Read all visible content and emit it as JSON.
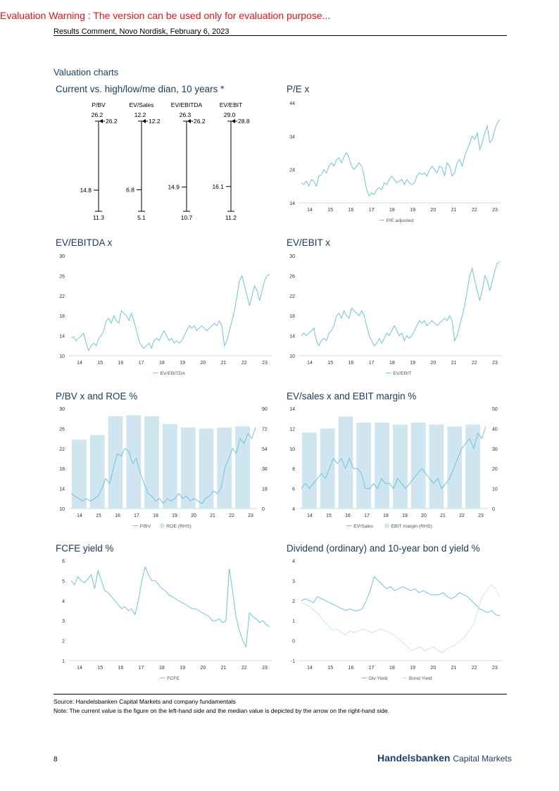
{
  "warning": "Evaluation Warning : The version can be used only for evaluation purpose...",
  "header": "Results Comment, Novo Nordisk, February 6, 2023",
  "section_title": "Valuation charts",
  "footer": {
    "source": "Source: Handelsbanken Capital Markets and company fundamentals",
    "note": "Note: The current value is the figure on the left-hand side and the median value is depicted by the arrow on the right-hand side.",
    "page": "8",
    "brand_bold": "Handelsbanken",
    "brand_rest": "Capital Markets"
  },
  "colors": {
    "line": "#6ec3e0",
    "bar": "#cfe6f0",
    "dark": "#0a1a33",
    "title": "#1a3a5c"
  },
  "chart_data": [
    {
      "type": "range",
      "title": "Current vs. high/low/me dian, 10 years *",
      "items": [
        {
          "name": "P/BV",
          "current_label": "26.2",
          "high": 26.2,
          "median": 14.8,
          "low": 11.3,
          "median_label": "14.8",
          "low_label": "11.3",
          "arrow_label": "26.2"
        },
        {
          "name": "EV/Sales",
          "current_label": "12.2",
          "high": 12.2,
          "median": 6.8,
          "low": 5.1,
          "median_label": "6.8",
          "low_label": "5.1",
          "arrow_label": "12.2"
        },
        {
          "name": "EV/EBITDA",
          "current_label": "26.3",
          "high": 26.3,
          "median": 14.9,
          "low": 10.7,
          "median_label": "14.9",
          "low_label": "10.7",
          "arrow_label": "26.2"
        },
        {
          "name": "EV/EBIT",
          "current_label": "29.0",
          "high": 29.0,
          "median": 16.1,
          "low": 11.2,
          "median_label": "16.1",
          "low_label": "11.2",
          "arrow_label": "28.8"
        }
      ]
    },
    {
      "type": "line",
      "title": "P/E x",
      "x_ticks": [
        "14",
        "15",
        "16",
        "17",
        "18",
        "19",
        "20",
        "21",
        "22",
        "23"
      ],
      "ylim": [
        14,
        44
      ],
      "yticks": [
        14,
        24,
        34,
        44
      ],
      "series": [
        {
          "name": "P/E adjusted",
          "values": [
            20,
            19.5,
            20.5,
            19,
            21,
            20.5,
            19,
            22,
            22.5,
            24,
            23,
            25,
            26,
            25,
            27,
            27.5,
            26,
            28,
            29,
            27.5,
            25,
            24,
            25,
            26,
            25,
            22,
            18,
            16,
            17,
            16.5,
            18,
            18.5,
            18,
            20,
            19.5,
            21,
            22,
            21,
            20,
            20.5,
            21,
            19.5,
            21,
            20,
            19.5,
            20,
            22,
            23,
            22.5,
            23,
            22,
            24,
            25,
            24,
            23,
            25,
            24.5,
            22,
            26,
            25,
            22,
            23,
            26,
            27,
            25,
            28,
            30,
            32,
            34,
            33,
            35,
            30,
            32,
            35,
            37,
            32,
            33,
            36,
            38,
            39
          ]
        }
      ]
    },
    {
      "type": "line",
      "title": "EV/EBITDA x",
      "x_ticks": [
        "14",
        "15",
        "16",
        "17",
        "18",
        "19",
        "20",
        "21",
        "22",
        "23"
      ],
      "ylim": [
        10,
        30
      ],
      "yticks": [
        10,
        14,
        18,
        22,
        26,
        30
      ],
      "series": [
        {
          "name": "EV/EBITDA",
          "values": [
            13.5,
            13.8,
            13,
            13.5,
            14,
            14.5,
            12.5,
            11,
            12,
            12.5,
            12,
            13.5,
            14,
            15,
            17,
            17.5,
            16.5,
            18,
            17,
            16.5,
            19,
            18.5,
            18,
            17,
            18.5,
            17,
            15,
            13,
            12,
            11.5,
            12,
            12.5,
            11.5,
            13,
            13.5,
            13,
            14,
            15,
            14,
            13,
            13.5,
            12.5,
            13,
            12.5,
            13,
            14,
            15,
            16,
            15.5,
            16,
            15,
            15.5,
            16,
            15.5,
            15,
            15.5,
            16,
            16.5,
            16,
            17,
            16,
            12,
            13,
            15,
            17,
            19,
            22,
            25,
            26,
            24,
            22,
            20,
            22,
            24,
            23,
            21,
            23,
            25,
            26,
            26.2
          ]
        }
      ]
    },
    {
      "type": "line",
      "title": "EV/EBIT x",
      "x_ticks": [
        "14",
        "15",
        "16",
        "17",
        "18",
        "19",
        "20",
        "21",
        "22",
        "23"
      ],
      "ylim": [
        10,
        30
      ],
      "yticks": [
        10,
        14,
        18,
        22,
        26,
        30
      ],
      "series": [
        {
          "name": "EV/EBIT",
          "values": [
            14,
            14.5,
            14,
            14.5,
            15,
            15.5,
            13,
            12,
            13,
            13.5,
            13,
            14.5,
            15,
            16,
            18,
            18.5,
            17.5,
            19,
            18,
            17.5,
            19.5,
            19,
            18.5,
            18,
            19,
            18,
            16,
            14,
            13,
            12,
            12.5,
            13.5,
            12.5,
            13.5,
            14.5,
            14,
            15,
            16,
            15,
            14,
            14.5,
            13,
            14,
            13.5,
            14,
            15,
            16,
            17,
            16.5,
            17,
            16,
            16.5,
            17,
            16.5,
            16,
            16.5,
            17,
            17.5,
            17,
            18,
            17,
            13,
            14,
            16,
            18,
            20,
            23,
            26,
            27.5,
            25,
            23,
            21,
            23,
            26,
            25,
            23,
            25,
            27,
            28.5,
            28.8
          ]
        }
      ]
    },
    {
      "type": "bar-line",
      "title": "P/BV x and ROE %",
      "x_ticks": [
        "14",
        "15",
        "16",
        "17",
        "18",
        "19",
        "20",
        "21",
        "22",
        "23"
      ],
      "ylim": [
        10,
        30
      ],
      "yticks": [
        10,
        14,
        18,
        22,
        26,
        30
      ],
      "ylim_rhs": [
        0,
        90
      ],
      "yticks_rhs": [
        0,
        18,
        36,
        54,
        72,
        90
      ],
      "bars": {
        "name": "ROE (RHS)",
        "values": [
          62,
          66,
          83,
          84,
          83,
          76,
          73,
          72,
          73,
          74
        ]
      },
      "series": [
        {
          "name": "P/BV",
          "values": [
            13,
            12.5,
            12,
            11.5,
            12,
            11.5,
            12,
            12.5,
            14,
            16,
            15,
            18,
            21,
            20.5,
            22,
            21.5,
            19,
            20,
            17,
            15,
            13,
            12.5,
            11.5,
            12,
            11,
            12,
            11.5,
            12,
            13,
            12,
            12.5,
            11.5,
            12,
            11.5,
            11,
            12,
            12.5,
            13.5,
            13,
            14,
            18,
            20,
            22,
            21,
            24,
            23,
            25,
            24,
            26.2
          ]
        }
      ]
    },
    {
      "type": "bar-line",
      "title": "EV/sales x and EBIT margin %",
      "x_ticks": [
        "14",
        "15",
        "16",
        "17",
        "18",
        "19",
        "20",
        "21",
        "22",
        "23"
      ],
      "ylim": [
        4,
        14
      ],
      "yticks": [
        4,
        6,
        8,
        10,
        12,
        14
      ],
      "ylim_rhs": [
        0,
        50
      ],
      "yticks_rhs": [
        0,
        10,
        20,
        30,
        40,
        50
      ],
      "bars": {
        "name": "EBIT margin (RHS)",
        "values": [
          38,
          40,
          46,
          43,
          43,
          42,
          43,
          42,
          41,
          42
        ]
      },
      "series": [
        {
          "name": "EV/Sales",
          "values": [
            6,
            6.5,
            6,
            6.5,
            7,
            7.5,
            7,
            8,
            9,
            8.5,
            9,
            8,
            9,
            8,
            8,
            7.5,
            6,
            6,
            6.5,
            6,
            7,
            6.5,
            6.5,
            6,
            7,
            6.5,
            6,
            6.5,
            7,
            7.5,
            8,
            7.5,
            7,
            6.5,
            7,
            6,
            6.5,
            7,
            8,
            9,
            10,
            10.5,
            11,
            10,
            11.5,
            11,
            12.2
          ]
        }
      ]
    },
    {
      "type": "line",
      "title": "FCFE yield %",
      "x_ticks": [
        "14",
        "15",
        "16",
        "17",
        "18",
        "19",
        "20",
        "21",
        "22",
        "23"
      ],
      "ylim": [
        1,
        6
      ],
      "yticks": [
        1,
        2,
        3,
        4,
        5,
        6
      ],
      "series": [
        {
          "name": "FCFE",
          "values": [
            5,
            4.8,
            5.2,
            5,
            4.9,
            5.1,
            5.3,
            4.6,
            5.5,
            5,
            4.5,
            4.4,
            4.2,
            4,
            3.8,
            3.6,
            3.7,
            3.5,
            3.6,
            3.3,
            4,
            5,
            5.7,
            5.3,
            5,
            5,
            4.8,
            4.6,
            4.5,
            4.3,
            4.2,
            4.1,
            4,
            3.9,
            3.8,
            3.7,
            3.6,
            3.6,
            3.5,
            3.4,
            3.3,
            3.2,
            3.0,
            3.0,
            3.1,
            2.9,
            3.0,
            5.6,
            4.5,
            3.2,
            2.5,
            2,
            1.7,
            3.4,
            3.2,
            3.1,
            2.9,
            3.0,
            2.8,
            2.7
          ]
        }
      ]
    },
    {
      "type": "line",
      "title": "Dividend (ordinary) and 10-year bon d yield %",
      "x_ticks": [
        "14",
        "15",
        "16",
        "17",
        "18",
        "19",
        "20",
        "21",
        "22",
        "23"
      ],
      "ylim": [
        -1,
        4
      ],
      "yticks": [
        -1,
        0,
        1,
        2,
        3,
        4
      ],
      "series": [
        {
          "name": "Div Yield",
          "values": [
            2,
            2.1,
            2,
            1.9,
            2.2,
            2.1,
            2,
            1.9,
            1.8,
            1.7,
            1.6,
            1.5,
            1.6,
            1.5,
            1.5,
            1.6,
            2,
            2.5,
            3.2,
            3,
            2.8,
            2.6,
            2.7,
            2.5,
            2.6,
            2.7,
            2.6,
            2.5,
            2.6,
            2.4,
            2.5,
            2.4,
            2.3,
            2.3,
            2.3,
            2.4,
            2.2,
            2.1,
            2.2,
            2.4,
            2.3,
            2.2,
            2,
            1.8,
            1.6,
            1.5,
            1.4,
            1.5,
            1.3,
            1.25
          ]
        },
        {
          "name": "Bond Yield",
          "values": [
            1.9,
            1.8,
            1.7,
            1.5,
            1.3,
            1,
            0.8,
            0.5,
            0.6,
            0.4,
            0.3,
            0.5,
            0.4,
            0.5,
            0.6,
            0.5,
            0.4,
            0.5,
            0.6,
            0.5,
            0.4,
            0.3,
            0.1,
            -0.1,
            -0.3,
            -0.5,
            -0.4,
            -0.3,
            -0.5,
            -0.4,
            -0.3,
            -0.5,
            -0.6,
            -0.4,
            -0.3,
            -0.2,
            0,
            0.2,
            0.5,
            0.8,
            1.5,
            2.2,
            2.5,
            2.8,
            2.6,
            2.2
          ]
        }
      ]
    }
  ]
}
